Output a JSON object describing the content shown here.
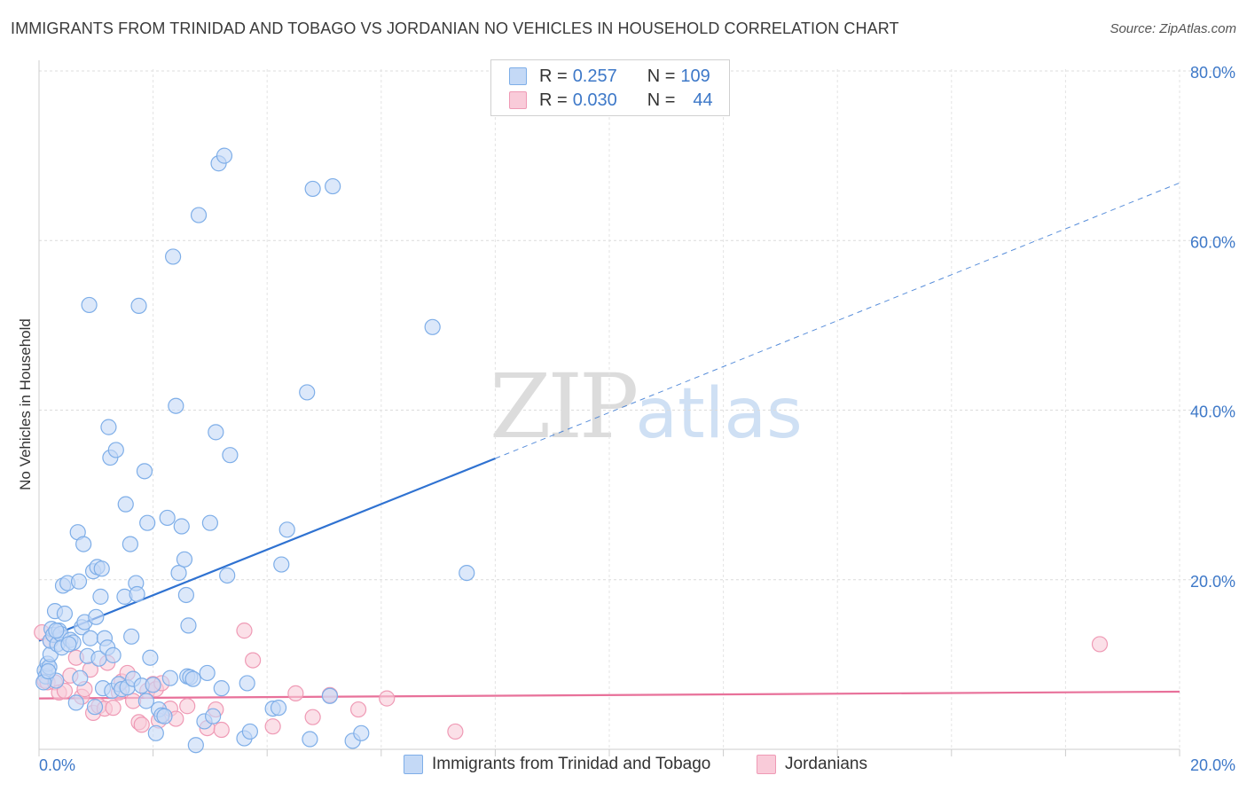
{
  "title": "IMMIGRANTS FROM TRINIDAD AND TOBAGO VS JORDANIAN NO VEHICLES IN HOUSEHOLD CORRELATION CHART",
  "source": "Source: ZipAtlas.com",
  "watermark": {
    "zip": "ZIP",
    "atlas": "atlas"
  },
  "legend": {
    "rows": [
      {
        "r_label": "R =",
        "r_value": "0.257",
        "n_label": "N =",
        "n_value": "109",
        "color": "#7eaee8",
        "fill": "#c4d9f6"
      },
      {
        "r_label": "R =",
        "r_value": "0.030",
        "n_label": "N =",
        "n_value": "44",
        "color": "#ef9ab5",
        "fill": "#f9cbd9"
      }
    ]
  },
  "bottom_legend": [
    {
      "label": "Immigrants from Trinidad and Tobago",
      "color": "#7eaee8",
      "fill": "#c4d9f6"
    },
    {
      "label": "Jordanians",
      "color": "#ef9ab5",
      "fill": "#f9cbd9"
    }
  ],
  "chart_data": {
    "type": "scatter",
    "title": "IMMIGRANTS FROM TRINIDAD AND TOBAGO VS JORDANIAN NO VEHICLES IN HOUSEHOLD CORRELATION CHART",
    "xlabel": "",
    "ylabel": "No Vehicles in Household",
    "xlim": [
      0,
      20
    ],
    "ylim": [
      0,
      80
    ],
    "x_tick_labels": [
      {
        "value": 0,
        "label": "0.0%"
      },
      {
        "value": 20,
        "label": "20.0%"
      }
    ],
    "y_tick_labels": [
      {
        "value": 20,
        "label": "20.0%"
      },
      {
        "value": 40,
        "label": "40.0%"
      },
      {
        "value": 60,
        "label": "60.0%"
      },
      {
        "value": 80,
        "label": "80.0%"
      }
    ],
    "grid": true,
    "series": [
      {
        "name": "Immigrants from Trinidad and Tobago",
        "color": "#7eaee8",
        "fill": "#c4d9f6",
        "trend": {
          "x_start": 0,
          "y_start": 12.8,
          "x_solid_end": 8,
          "y_solid_end": 34.3,
          "x_end": 20,
          "y_end": 66.8,
          "color": "#2f72d1"
        },
        "points": [
          [
            0.1,
            9.3
          ],
          [
            0.12,
            8.6
          ],
          [
            0.15,
            10.1
          ],
          [
            0.18,
            9.7
          ],
          [
            0.2,
            11.2
          ],
          [
            0.2,
            12.8
          ],
          [
            0.22,
            14.2
          ],
          [
            0.25,
            13.5
          ],
          [
            0.28,
            16.3
          ],
          [
            0.3,
            8.1
          ],
          [
            0.32,
            12.4
          ],
          [
            0.35,
            14.0
          ],
          [
            0.38,
            13.6
          ],
          [
            0.4,
            12.0
          ],
          [
            0.42,
            19.3
          ],
          [
            0.45,
            16.0
          ],
          [
            0.5,
            19.6
          ],
          [
            0.55,
            12.9
          ],
          [
            0.6,
            12.6
          ],
          [
            0.65,
            5.5
          ],
          [
            0.68,
            25.6
          ],
          [
            0.7,
            19.8
          ],
          [
            0.72,
            8.4
          ],
          [
            0.75,
            14.4
          ],
          [
            0.78,
            24.2
          ],
          [
            0.8,
            15.0
          ],
          [
            0.85,
            11.0
          ],
          [
            0.88,
            52.4
          ],
          [
            0.9,
            13.1
          ],
          [
            0.95,
            21.0
          ],
          [
            0.98,
            5.0
          ],
          [
            1.0,
            15.6
          ],
          [
            1.02,
            21.5
          ],
          [
            1.05,
            10.7
          ],
          [
            1.08,
            18.0
          ],
          [
            1.1,
            21.3
          ],
          [
            1.12,
            7.2
          ],
          [
            1.15,
            13.1
          ],
          [
            1.2,
            12.0
          ],
          [
            1.22,
            38.0
          ],
          [
            1.25,
            34.4
          ],
          [
            1.28,
            6.9
          ],
          [
            1.3,
            11.1
          ],
          [
            1.35,
            35.3
          ],
          [
            1.4,
            7.7
          ],
          [
            1.45,
            7.1
          ],
          [
            1.5,
            18.0
          ],
          [
            1.52,
            28.9
          ],
          [
            1.55,
            7.3
          ],
          [
            1.6,
            24.2
          ],
          [
            1.62,
            13.3
          ],
          [
            1.65,
            8.3
          ],
          [
            1.7,
            19.6
          ],
          [
            1.72,
            18.3
          ],
          [
            1.75,
            52.3
          ],
          [
            1.8,
            7.5
          ],
          [
            1.85,
            32.8
          ],
          [
            1.88,
            5.7
          ],
          [
            1.9,
            26.7
          ],
          [
            1.95,
            10.8
          ],
          [
            2.0,
            7.6
          ],
          [
            2.05,
            1.9
          ],
          [
            2.1,
            4.7
          ],
          [
            2.15,
            4.0
          ],
          [
            2.2,
            3.9
          ],
          [
            2.25,
            27.3
          ],
          [
            2.3,
            8.4
          ],
          [
            2.35,
            58.1
          ],
          [
            2.4,
            40.5
          ],
          [
            2.45,
            20.8
          ],
          [
            2.5,
            26.3
          ],
          [
            2.55,
            22.4
          ],
          [
            2.58,
            18.2
          ],
          [
            2.6,
            8.6
          ],
          [
            2.62,
            14.6
          ],
          [
            2.65,
            8.5
          ],
          [
            2.7,
            8.3
          ],
          [
            2.75,
            0.5
          ],
          [
            2.8,
            63.0
          ],
          [
            2.9,
            3.3
          ],
          [
            2.95,
            9.0
          ],
          [
            3.0,
            26.7
          ],
          [
            3.05,
            3.9
          ],
          [
            3.1,
            37.4
          ],
          [
            3.15,
            69.1
          ],
          [
            3.2,
            7.2
          ],
          [
            3.25,
            70.0
          ],
          [
            3.3,
            20.5
          ],
          [
            3.35,
            34.7
          ],
          [
            3.6,
            1.3
          ],
          [
            3.65,
            7.8
          ],
          [
            3.7,
            2.1
          ],
          [
            4.1,
            4.8
          ],
          [
            4.2,
            4.9
          ],
          [
            4.25,
            21.8
          ],
          [
            4.35,
            25.9
          ],
          [
            4.7,
            42.1
          ],
          [
            4.75,
            1.2
          ],
          [
            4.8,
            66.1
          ],
          [
            5.1,
            6.3
          ],
          [
            5.15,
            66.4
          ],
          [
            5.5,
            1.0
          ],
          [
            5.65,
            1.9
          ],
          [
            6.9,
            49.8
          ],
          [
            7.5,
            20.8
          ],
          [
            0.08,
            7.9
          ],
          [
            0.16,
            9.2
          ],
          [
            0.3,
            14.0
          ],
          [
            0.52,
            12.4
          ]
        ]
      },
      {
        "name": "Jordanians",
        "color": "#ef9ab5",
        "fill": "#f9cbd9",
        "trend": {
          "x_start": 0,
          "y_start": 6.0,
          "x_end": 20,
          "y_end": 6.8,
          "color": "#e8719a"
        },
        "points": [
          [
            0.05,
            13.8
          ],
          [
            0.1,
            8.1
          ],
          [
            0.15,
            7.9
          ],
          [
            0.2,
            12.8
          ],
          [
            0.28,
            7.9
          ],
          [
            0.35,
            6.7
          ],
          [
            0.45,
            6.9
          ],
          [
            0.55,
            8.7
          ],
          [
            0.65,
            10.8
          ],
          [
            0.75,
            6.2
          ],
          [
            0.8,
            7.1
          ],
          [
            0.9,
            9.4
          ],
          [
            0.95,
            4.3
          ],
          [
            1.05,
            5.1
          ],
          [
            1.15,
            4.8
          ],
          [
            1.2,
            10.2
          ],
          [
            1.3,
            4.9
          ],
          [
            1.4,
            6.7
          ],
          [
            1.45,
            8.0
          ],
          [
            1.55,
            9.0
          ],
          [
            1.65,
            5.7
          ],
          [
            1.75,
            3.2
          ],
          [
            1.8,
            2.9
          ],
          [
            1.9,
            6.9
          ],
          [
            2.0,
            7.7
          ],
          [
            2.05,
            7.1
          ],
          [
            2.1,
            3.4
          ],
          [
            2.15,
            7.8
          ],
          [
            2.3,
            4.8
          ],
          [
            2.4,
            3.6
          ],
          [
            2.6,
            5.1
          ],
          [
            2.95,
            2.5
          ],
          [
            3.1,
            4.7
          ],
          [
            3.2,
            2.3
          ],
          [
            3.6,
            14.0
          ],
          [
            3.75,
            10.5
          ],
          [
            4.1,
            2.7
          ],
          [
            4.5,
            6.6
          ],
          [
            4.8,
            3.8
          ],
          [
            5.1,
            6.4
          ],
          [
            5.6,
            4.7
          ],
          [
            6.1,
            6.0
          ],
          [
            7.3,
            2.1
          ],
          [
            18.6,
            12.4
          ]
        ]
      }
    ]
  }
}
